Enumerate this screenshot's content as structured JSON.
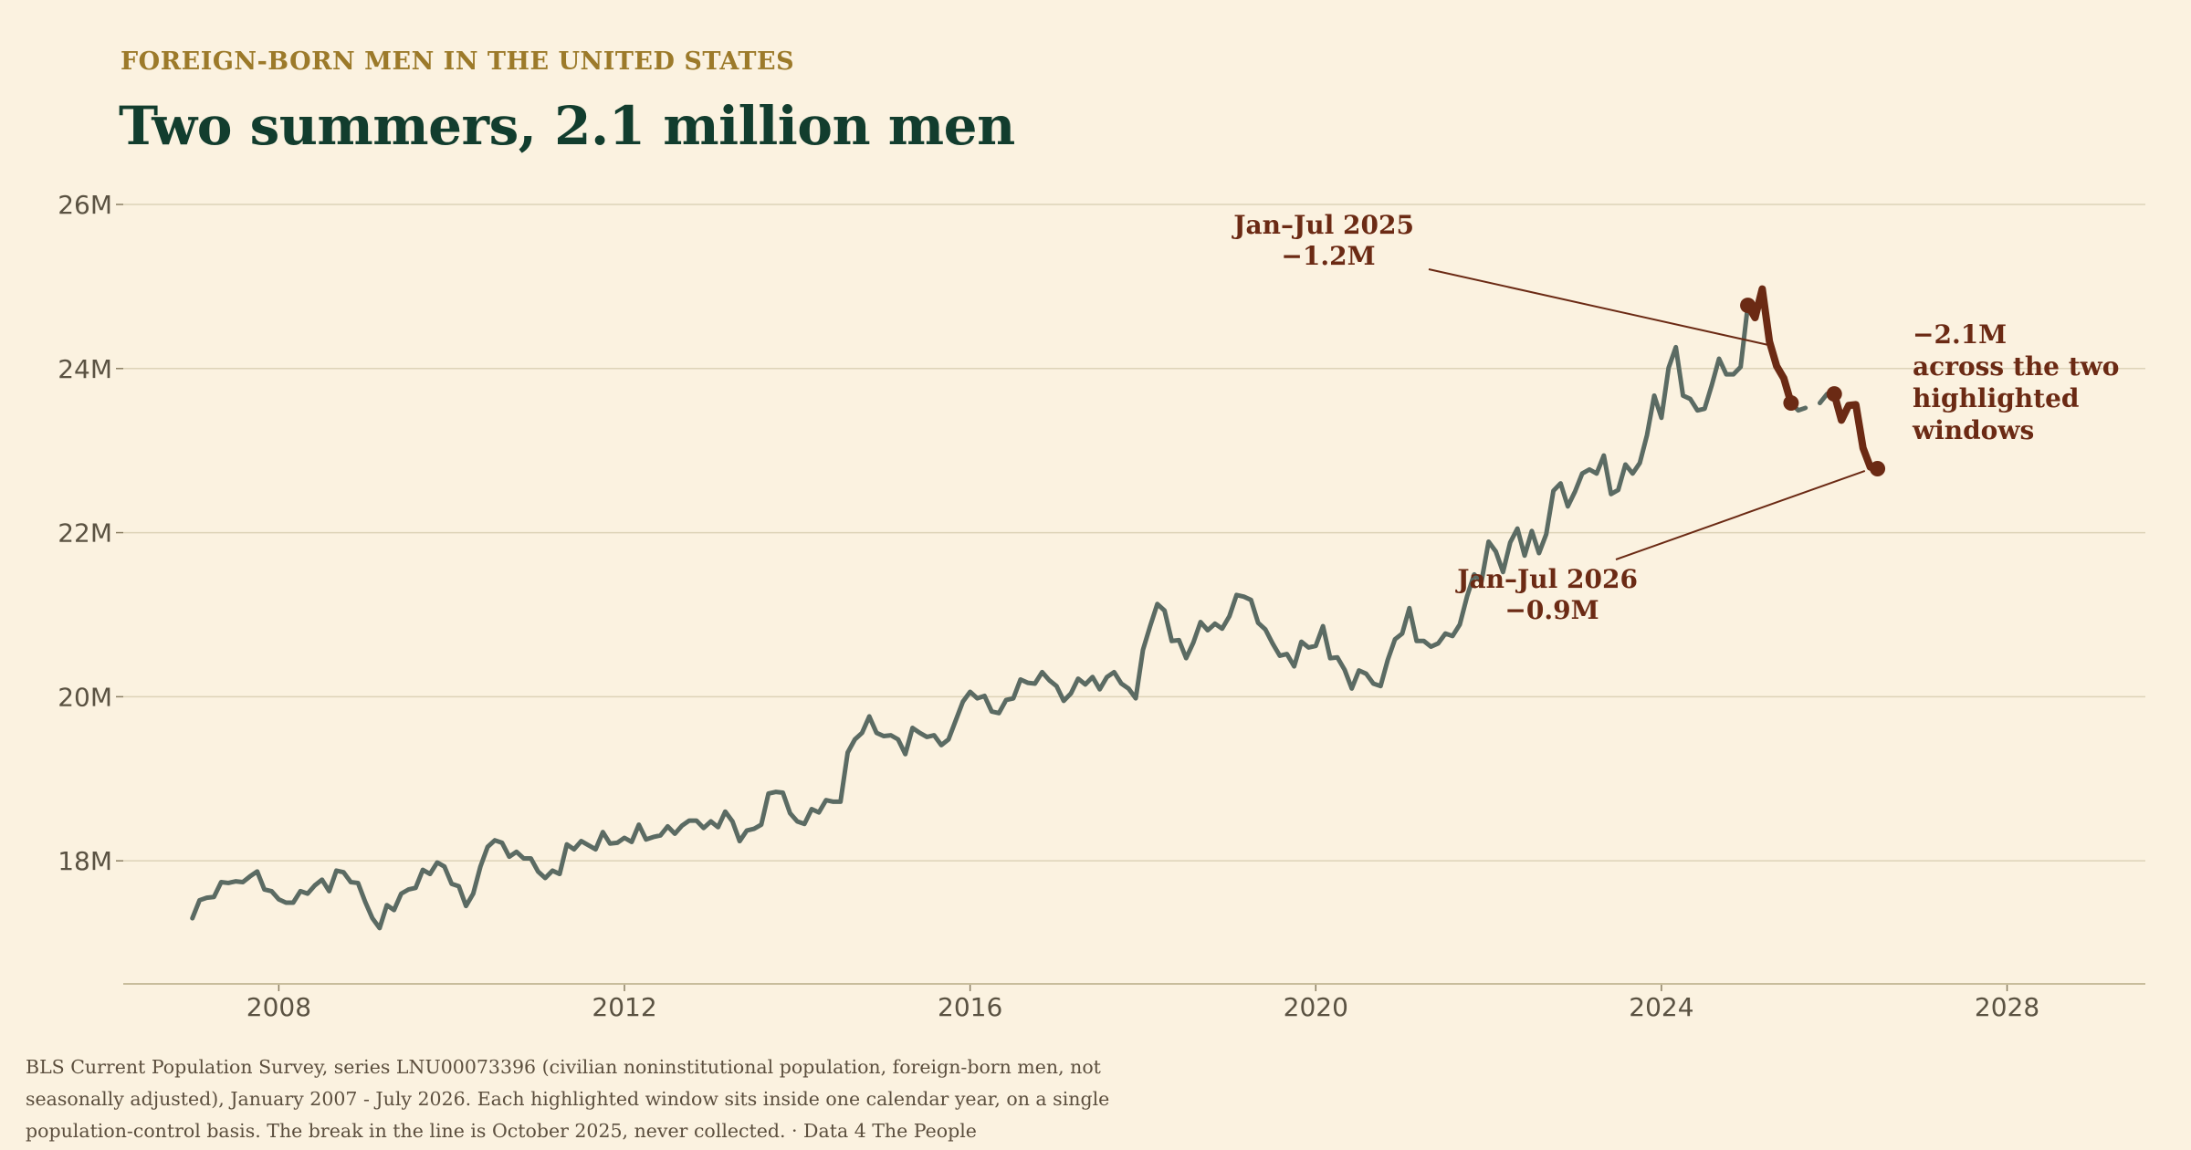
{
  "header": {
    "kicker": "FOREIGN-BORN MEN IN THE UNITED STATES",
    "title": "Two summers, 2.1 million men"
  },
  "source": "BLS Current Population Survey, series LNU00073396 (civilian noninstitutional population, foreign-born men, not seasonally adjusted), January 2007 - July 2026. Each highlighted window sits inside one calendar year, on a single population-control basis. The break in the line is October 2025, never collected. · Data 4 The People",
  "colors": {
    "background": "#fbf2e0",
    "line": "#5b6b63",
    "highlight": "#6b2a14",
    "grid": "#ddd3b8",
    "kicker": "#9c7a2a",
    "title": "#123d2e"
  },
  "chart_data": {
    "type": "line",
    "title": "Two summers, 2.1 million men",
    "xlabel": "",
    "ylabel": "",
    "unit": "millions",
    "xlim": [
      2006.2,
      2029.6
    ],
    "ylim": [
      16.5,
      26
    ],
    "x_ticks": [
      2008,
      2012,
      2016,
      2020,
      2024,
      2028
    ],
    "x_tick_labels": [
      "2008",
      "2012",
      "2016",
      "2020",
      "2024",
      "2028"
    ],
    "y_ticks": [
      18,
      20,
      22,
      24,
      26
    ],
    "y_tick_labels": [
      "18M",
      "20M",
      "22M",
      "24M",
      "26M"
    ],
    "grid": true,
    "legend": "none",
    "series": [
      {
        "start": "2007-01",
        "frequency": "monthly",
        "values": [
          17.3,
          17.52,
          17.55,
          17.56,
          17.74,
          17.73,
          17.75,
          17.74,
          17.81,
          17.87,
          17.65,
          17.63,
          17.53,
          17.49,
          17.49,
          17.63,
          17.6,
          17.7,
          17.77,
          17.63,
          17.88,
          17.86,
          17.74,
          17.73,
          17.5,
          17.3,
          17.18,
          17.46,
          17.4,
          17.6,
          17.65,
          17.67,
          17.89,
          17.84,
          17.98,
          17.93,
          17.72,
          17.69,
          17.45,
          17.6,
          17.93,
          18.17,
          18.25,
          18.22,
          18.05,
          18.11,
          18.03,
          18.03,
          17.87,
          17.79,
          17.88,
          17.84,
          18.2,
          18.14,
          18.24,
          18.19,
          18.14,
          18.35,
          18.21,
          18.22,
          18.28,
          18.23,
          18.44,
          18.26,
          18.29,
          18.31,
          18.42,
          18.33,
          18.43,
          18.49,
          18.49,
          18.4,
          18.48,
          18.41,
          18.6,
          18.48,
          18.24,
          18.37,
          18.39,
          18.44,
          18.82,
          18.84,
          18.83,
          18.58,
          18.48,
          18.45,
          18.63,
          18.59,
          18.74,
          18.72,
          18.72,
          19.32,
          19.48,
          19.56,
          19.76,
          19.56,
          19.52,
          19.53,
          19.48,
          19.3,
          19.62,
          19.56,
          19.51,
          19.53,
          19.41,
          19.48,
          19.71,
          19.94,
          20.06,
          19.98,
          20.01,
          19.82,
          19.8,
          19.96,
          19.98,
          20.21,
          20.17,
          20.16,
          20.3,
          20.2,
          20.13,
          19.95,
          20.04,
          20.22,
          20.15,
          20.24,
          20.09,
          20.24,
          20.3,
          20.16,
          20.1,
          19.98,
          20.57,
          20.86,
          21.13,
          21.05,
          20.68,
          20.69,
          20.47,
          20.66,
          20.91,
          20.81,
          20.89,
          20.83,
          20.98,
          21.24,
          21.22,
          21.18,
          20.9,
          20.82,
          20.65,
          20.5,
          20.52,
          20.37,
          20.67,
          20.6,
          20.62,
          20.86,
          20.47,
          20.48,
          20.33,
          20.1,
          20.32,
          20.28,
          20.16,
          20.13,
          20.45,
          20.7,
          20.77,
          21.08,
          20.68,
          20.68,
          20.61,
          20.65,
          20.77,
          20.74,
          20.88,
          21.22,
          21.49,
          21.4,
          21.89,
          21.77,
          21.52,
          21.88,
          22.05,
          21.72,
          22.02,
          21.75,
          21.98,
          22.51,
          22.6,
          22.32,
          22.5,
          22.72,
          22.77,
          22.72,
          22.94,
          22.47,
          22.52,
          22.83,
          22.72,
          22.85,
          23.19,
          23.67,
          23.4,
          24.01,
          24.26,
          23.67,
          23.63,
          23.49,
          23.51,
          23.8,
          24.12,
          23.93,
          23.93,
          24.02,
          24.77,
          24.62,
          24.97,
          24.33,
          24.03,
          23.88,
          23.58,
          23.49,
          23.52,
          null,
          23.58,
          23.69,
          23.69,
          23.37,
          23.55,
          23.56,
          23.03,
          22.8,
          22.78
        ]
      }
    ],
    "highlights": [
      {
        "label": "Jan–Jul 2025",
        "change": "−1.2M",
        "start": "2025-01",
        "end": "2025-07",
        "start_value": 24.77,
        "end_value": 23.58
      },
      {
        "label": "Jan–Jul 2026",
        "change": "−0.9M",
        "start": "2026-01",
        "end": "2026-07",
        "start_value": 23.69,
        "end_value": 22.78
      }
    ],
    "total_annotation": "−2.1M across the two highlighted windows",
    "total_annotation_lines": [
      "−2.1M",
      "across the two",
      "highlighted",
      "windows"
    ]
  }
}
